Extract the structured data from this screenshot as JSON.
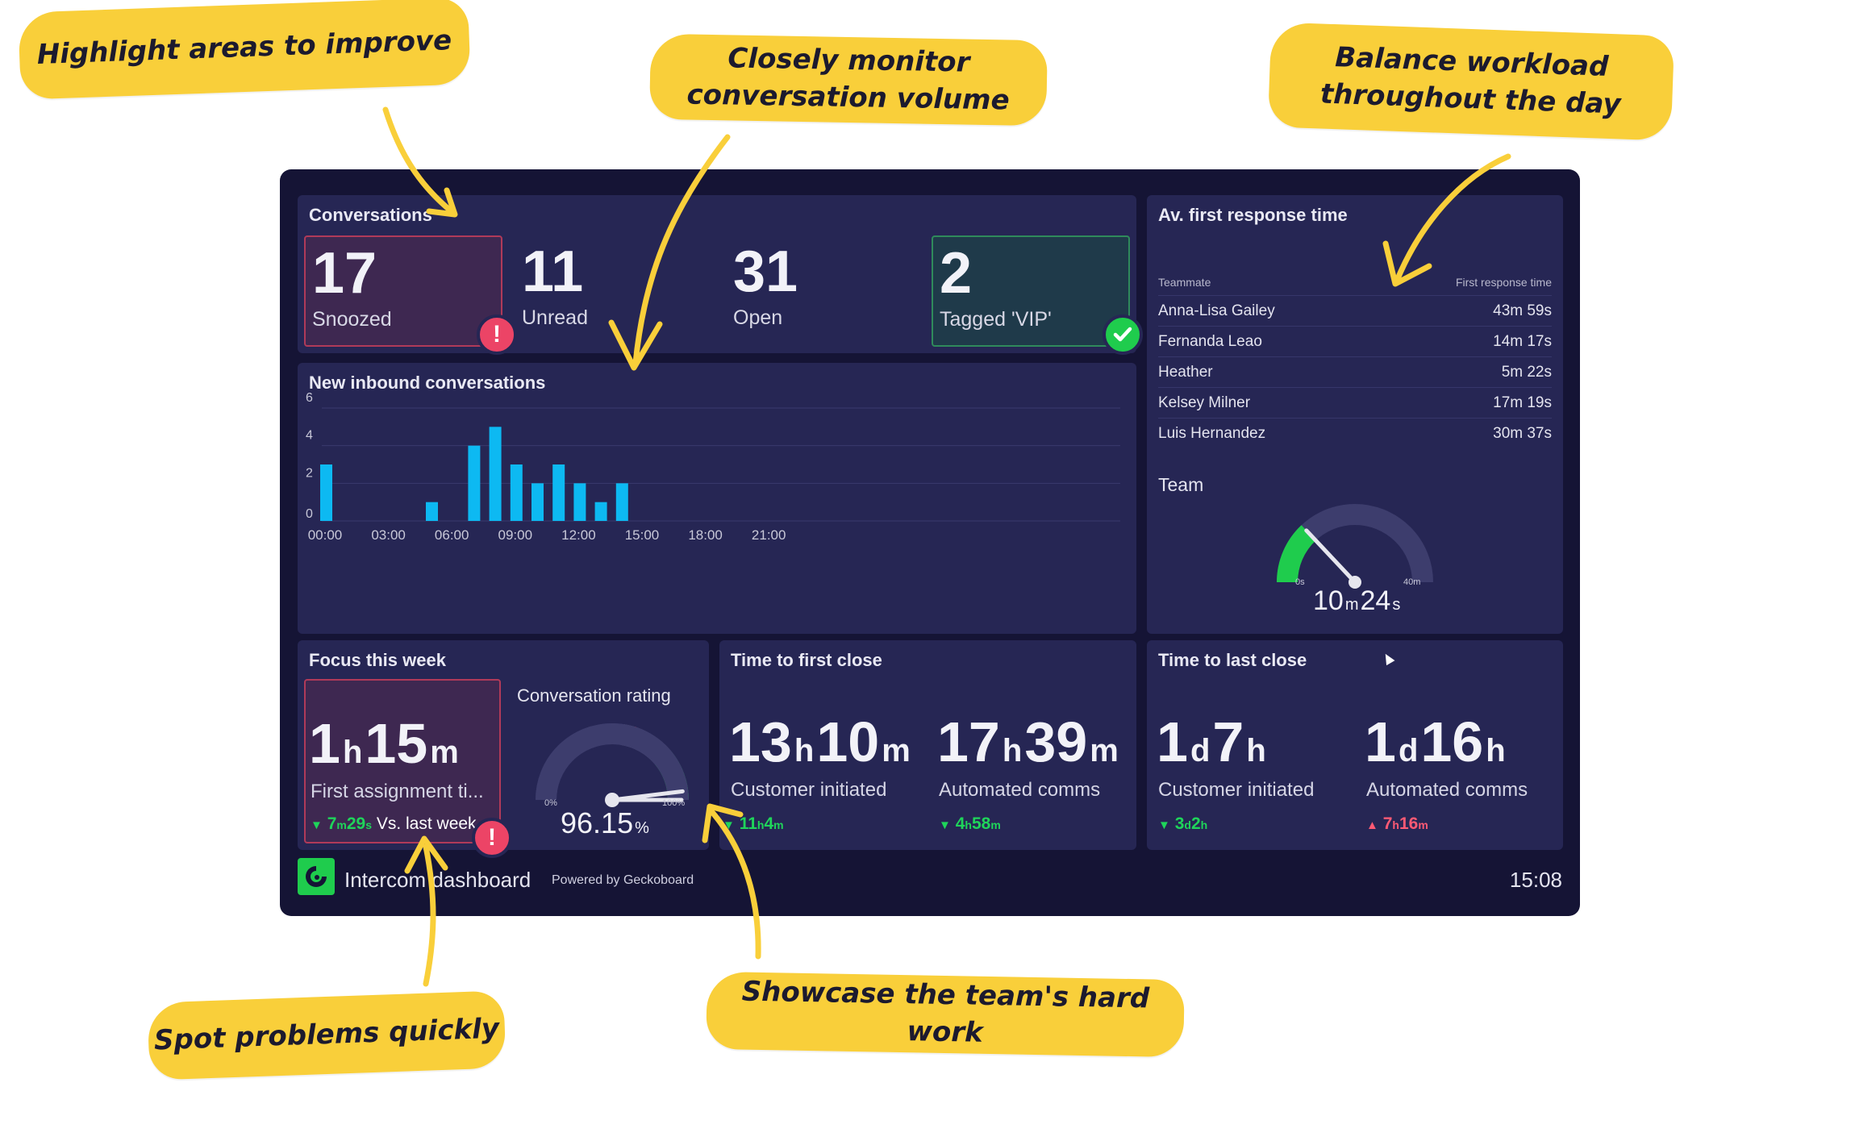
{
  "callouts": {
    "improve": "Highlight areas to improve",
    "volume": "Closely monitor\nconversation volume",
    "workload": "Balance workload\nthroughout the day",
    "problems": "Spot problems quickly",
    "showcase": "Showcase the team's hard work"
  },
  "conversations": {
    "title": "Conversations",
    "stats": [
      {
        "value": "17",
        "label": "Snoozed"
      },
      {
        "value": "11",
        "label": "Unread"
      },
      {
        "value": "31",
        "label": "Open"
      },
      {
        "value": "2",
        "label": "Tagged 'VIP'"
      }
    ]
  },
  "inbound": {
    "title": "New inbound conversations"
  },
  "chart_data": {
    "type": "bar",
    "title": "New inbound conversations",
    "x_ticks": [
      "00:00",
      "03:00",
      "06:00",
      "09:00",
      "12:00",
      "15:00",
      "18:00",
      "21:00"
    ],
    "y_ticks": [
      "0",
      "2",
      "4",
      "6"
    ],
    "ylim": [
      0,
      6
    ],
    "series_color": "#0db9f2",
    "bars": [
      {
        "hour": 0,
        "value": 3
      },
      {
        "hour": 5,
        "value": 1
      },
      {
        "hour": 7,
        "value": 4
      },
      {
        "hour": 8,
        "value": 5
      },
      {
        "hour": 9,
        "value": 3
      },
      {
        "hour": 10,
        "value": 2
      },
      {
        "hour": 11,
        "value": 3
      },
      {
        "hour": 12,
        "value": 2
      },
      {
        "hour": 13,
        "value": 1
      },
      {
        "hour": 14,
        "value": 2
      }
    ]
  },
  "response": {
    "title": "Av. first response time",
    "col_teammate": "Teammate",
    "col_time": "First response time",
    "rows": [
      {
        "name": "Anna-Lisa Gailey",
        "time": "43m 59s"
      },
      {
        "name": "Fernanda Leao",
        "time": "14m 17s"
      },
      {
        "name": "Heather",
        "time": "5m 22s"
      },
      {
        "name": "Kelsey Milner",
        "time": "17m 19s"
      },
      {
        "name": "Luis Hernandez",
        "time": "30m 37s"
      }
    ],
    "team_label": "Team",
    "gauge": {
      "min": "0s",
      "max": "40m",
      "fraction": 0.26,
      "v1": "10",
      "u1": "m",
      "v2": "24",
      "u2": "s"
    }
  },
  "focus": {
    "title": "Focus this week",
    "v1": "1",
    "u1": "h",
    "v2": "15",
    "u2": "m",
    "label": "First assignment ti...",
    "delta_v1": "7",
    "delta_u1": "m",
    "delta_v2": "29",
    "delta_u2": "s",
    "delta_suffix": "Vs. last week",
    "rating_title": "Conversation rating",
    "rating_min": "0%",
    "rating_max": "100%",
    "rating_fraction": 0.9615,
    "rating_value": "96.15",
    "rating_unit": "%"
  },
  "first_close": {
    "title": "Time to first close",
    "a_v1": "13",
    "a_u1": "h",
    "a_v2": "10",
    "a_u2": "m",
    "a_label": "Customer initiated",
    "a_d1": "11",
    "a_du1": "h",
    "a_d2": "4",
    "a_du2": "m",
    "b_v1": "17",
    "b_u1": "h",
    "b_v2": "39",
    "b_u2": "m",
    "b_label": "Automated comms",
    "b_d1": "4",
    "b_du1": "h",
    "b_d2": "58",
    "b_du2": "m"
  },
  "last_close": {
    "title": "Time to last close",
    "a_v1": "1",
    "a_u1": "d",
    "a_v2": "7",
    "a_u2": "h",
    "a_label": "Customer initiated",
    "a_d1": "3",
    "a_du1": "d",
    "a_d2": "2",
    "a_du2": "h",
    "b_v1": "1",
    "b_u1": "d",
    "b_v2": "16",
    "b_u2": "h",
    "b_label": "Automated comms",
    "b_d1": "7",
    "b_du1": "h",
    "b_d2": "16",
    "b_du2": "m"
  },
  "footer": {
    "title": "Intercom dashboard",
    "powered": "Powered by Geckoboard",
    "time": "15:08"
  },
  "colors": {
    "callout": "#f9cf3a",
    "frame": "#151435",
    "panel": "#262654",
    "good": "#1fcc4d",
    "bad": "#ec4466",
    "bar": "#0db9f2"
  }
}
